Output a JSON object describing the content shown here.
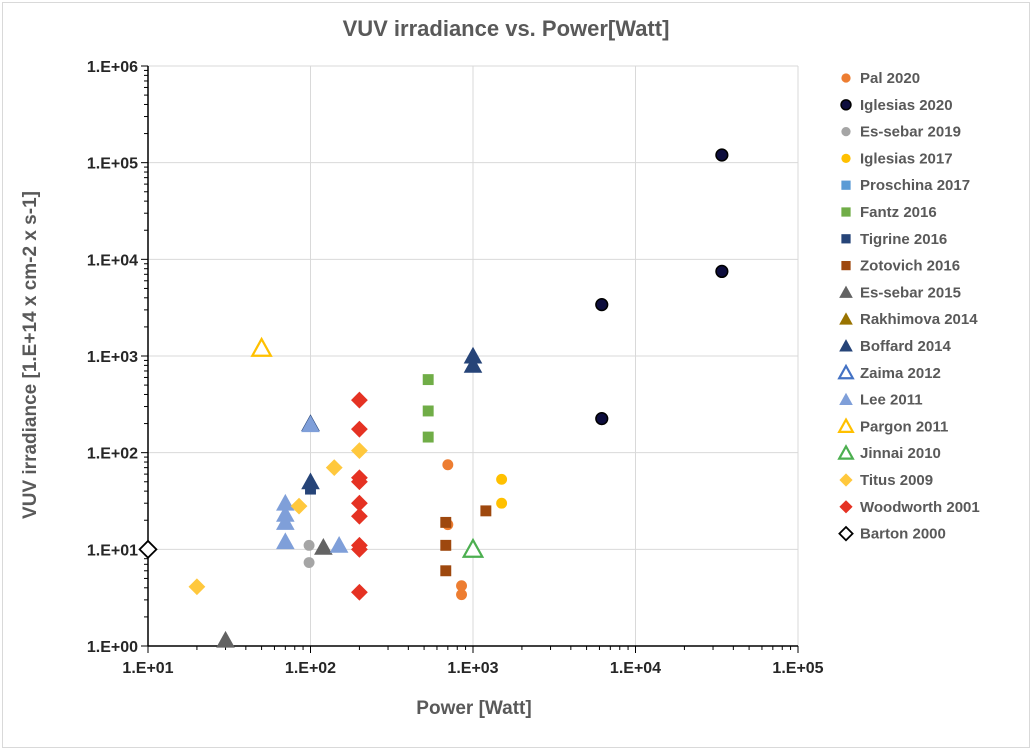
{
  "chart_data": {
    "type": "scatter",
    "title": "VUV irradiance vs. Power[Watt]",
    "xlabel": "Power [Watt]",
    "ylabel": "VUV irradiance [1.E+14 x cm-2 x s-1]",
    "xscale": "log",
    "yscale": "log",
    "xlim": [
      10,
      100000
    ],
    "ylim": [
      1,
      1000000
    ],
    "x_ticks": [
      10,
      100,
      1000,
      10000,
      100000
    ],
    "x_tick_labels": [
      "1.E+01",
      "1.E+02",
      "1.E+03",
      "1.E+04",
      "1.E+05"
    ],
    "y_ticks": [
      1,
      10,
      100,
      1000,
      10000,
      100000,
      1000000
    ],
    "y_tick_labels": [
      "1.E+00",
      "1.E+01",
      "1.E+02",
      "1.E+03",
      "1.E+04",
      "1.E+05",
      "1.E+06"
    ],
    "grid": true,
    "legend_position": "right",
    "series": [
      {
        "name": "Pal 2020",
        "marker": "circle",
        "color": "#ED7D31",
        "points": [
          [
            700,
            75
          ],
          [
            700,
            18
          ],
          [
            850,
            4.2
          ],
          [
            850,
            3.4
          ]
        ]
      },
      {
        "name": "Iglesias 2020",
        "marker": "circle-outline",
        "color": "#000000",
        "fill": "#0d0d3d",
        "points": [
          [
            6200,
            3400
          ],
          [
            6200,
            225
          ],
          [
            34000,
            120000
          ],
          [
            34000,
            7500
          ]
        ]
      },
      {
        "name": "Es-sebar 2019",
        "marker": "circle",
        "color": "#A5A5A5",
        "points": [
          [
            98,
            11
          ],
          [
            98,
            7.3
          ]
        ]
      },
      {
        "name": "Iglesias 2017",
        "marker": "circle",
        "color": "#FFC000",
        "points": [
          [
            1500,
            53
          ],
          [
            1500,
            30
          ]
        ]
      },
      {
        "name": "Proschina 2017",
        "marker": "square",
        "color": "#5B9BD5",
        "points": []
      },
      {
        "name": "Fantz 2016",
        "marker": "square",
        "color": "#70AD47",
        "points": [
          [
            530,
            570
          ],
          [
            530,
            270
          ],
          [
            530,
            145
          ]
        ]
      },
      {
        "name": "Tigrine 2016",
        "marker": "square",
        "color": "#264478",
        "points": [
          [
            100,
            42
          ]
        ]
      },
      {
        "name": "Zotovich 2016",
        "marker": "square",
        "color": "#9E480E",
        "points": [
          [
            680,
            19
          ],
          [
            680,
            11
          ],
          [
            680,
            6
          ],
          [
            1200,
            25
          ]
        ]
      },
      {
        "name": "Es-sebar 2015",
        "marker": "triangle",
        "color": "#636363",
        "points": [
          [
            30,
            1.15
          ],
          [
            120,
            10.5
          ]
        ]
      },
      {
        "name": "Rakhimova 2014",
        "marker": "triangle",
        "color": "#997300",
        "points": []
      },
      {
        "name": "Boffard 2014",
        "marker": "triangle",
        "color": "#264478",
        "points": [
          [
            100,
            200
          ],
          [
            100,
            50
          ],
          [
            1000,
            1000
          ],
          [
            1000,
            800
          ]
        ]
      },
      {
        "name": "Zaima 2012",
        "marker": "triangle-outline",
        "color": "#4472C4",
        "points": []
      },
      {
        "name": "Lee 2011",
        "marker": "triangle",
        "color": "#7F9FD9",
        "points": [
          [
            70,
            30
          ],
          [
            70,
            23
          ],
          [
            70,
            19
          ],
          [
            70,
            12
          ],
          [
            150,
            11
          ],
          [
            100,
            195
          ]
        ]
      },
      {
        "name": "Pargon 2011",
        "marker": "triangle-outline",
        "color": "#FFC000",
        "points": [
          [
            50,
            1200
          ]
        ]
      },
      {
        "name": "Jinnai 2010",
        "marker": "triangle-outline",
        "color": "#4CAF50",
        "points": [
          [
            1000,
            10
          ]
        ]
      },
      {
        "name": "Titus 2009",
        "marker": "diamond",
        "color": "#FFC83D",
        "points": [
          [
            20,
            4.1
          ],
          [
            85,
            28
          ],
          [
            140,
            70
          ],
          [
            200,
            105
          ]
        ]
      },
      {
        "name": "Woodworth 2001",
        "marker": "diamond",
        "color": "#E53223",
        "points": [
          [
            200,
            350
          ],
          [
            200,
            175
          ],
          [
            200,
            55
          ],
          [
            200,
            50
          ],
          [
            200,
            30
          ],
          [
            200,
            22
          ],
          [
            200,
            11
          ],
          [
            200,
            10
          ],
          [
            200,
            3.6
          ]
        ]
      },
      {
        "name": "Barton 2000",
        "marker": "diamond-outline",
        "color": "#000000",
        "points": [
          [
            10,
            10
          ]
        ]
      }
    ]
  }
}
